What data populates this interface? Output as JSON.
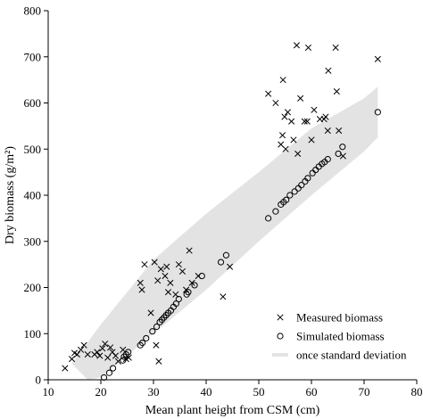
{
  "chart_data": {
    "type": "scatter",
    "xlabel": "Mean plant height from CSM (cm)",
    "ylabel": "Dry biomass (g/m²)",
    "xlim": [
      10,
      80
    ],
    "ylim": [
      0,
      800
    ],
    "x_ticks": [
      10,
      20,
      30,
      40,
      50,
      60,
      70,
      80
    ],
    "y_ticks": [
      0,
      100,
      200,
      300,
      400,
      500,
      600,
      700,
      800
    ],
    "grid": false,
    "legend_position": "bottom-right",
    "band": {
      "name": "once standard deviation",
      "color": "#e3e3e3",
      "upper": [
        [
          14.5,
          35
        ],
        [
          20,
          120
        ],
        [
          30,
          260
        ],
        [
          40,
          360
        ],
        [
          50,
          450
        ],
        [
          60,
          545
        ],
        [
          70,
          610
        ],
        [
          72.6,
          635
        ]
      ],
      "lower": [
        [
          17.5,
          0
        ],
        [
          20,
          5
        ],
        [
          30,
          100
        ],
        [
          40,
          195
        ],
        [
          50,
          300
        ],
        [
          60,
          400
        ],
        [
          70,
          495
        ],
        [
          72.6,
          525
        ]
      ]
    },
    "series": [
      {
        "name": "Measured biomass",
        "marker": "cross",
        "points": [
          [
            13.2,
            25
          ],
          [
            14.5,
            45
          ],
          [
            15,
            58
          ],
          [
            15.5,
            55
          ],
          [
            16.2,
            65
          ],
          [
            16.8,
            75
          ],
          [
            17.5,
            55
          ],
          [
            18.8,
            55
          ],
          [
            19.3,
            60
          ],
          [
            19.8,
            52
          ],
          [
            20.3,
            68
          ],
          [
            20.8,
            78
          ],
          [
            21.3,
            48
          ],
          [
            21.8,
            70
          ],
          [
            22.2,
            60
          ],
          [
            22.8,
            52
          ],
          [
            23.3,
            40
          ],
          [
            24.2,
            65
          ],
          [
            24.8,
            45
          ],
          [
            25.3,
            48
          ],
          [
            27.5,
            210
          ],
          [
            27.8,
            195
          ],
          [
            28.3,
            250
          ],
          [
            29.5,
            145
          ],
          [
            30.2,
            255
          ],
          [
            30.5,
            75
          ],
          [
            30.8,
            215
          ],
          [
            31,
            40
          ],
          [
            31.4,
            240
          ],
          [
            32.2,
            225
          ],
          [
            32.5,
            245
          ],
          [
            32.8,
            190
          ],
          [
            33.2,
            210
          ],
          [
            34.2,
            185
          ],
          [
            34.8,
            250
          ],
          [
            35.5,
            235
          ],
          [
            36.2,
            195
          ],
          [
            36.8,
            280
          ],
          [
            37.3,
            210
          ],
          [
            38.5,
            225
          ],
          [
            43.2,
            180
          ],
          [
            44.5,
            245
          ],
          [
            51.8,
            620
          ],
          [
            53.2,
            600
          ],
          [
            54.2,
            510
          ],
          [
            54.5,
            530
          ],
          [
            54.6,
            650
          ],
          [
            54.9,
            570
          ],
          [
            55.1,
            500
          ],
          [
            55.5,
            580
          ],
          [
            56.2,
            560
          ],
          [
            56.6,
            520
          ],
          [
            57.2,
            725
          ],
          [
            57.4,
            490
          ],
          [
            57.9,
            610
          ],
          [
            58.7,
            560
          ],
          [
            59.2,
            560
          ],
          [
            59.4,
            720
          ],
          [
            60,
            520
          ],
          [
            60.5,
            585
          ],
          [
            61.6,
            565
          ],
          [
            62.4,
            565
          ],
          [
            62.7,
            570
          ],
          [
            63.1,
            540
          ],
          [
            63.2,
            670
          ],
          [
            64.6,
            720
          ],
          [
            64.8,
            625
          ],
          [
            65.2,
            540
          ],
          [
            66,
            485
          ],
          [
            72.6,
            695
          ]
        ]
      },
      {
        "name": "Simulated biomass",
        "marker": "circle",
        "points": [
          [
            20.6,
            5
          ],
          [
            21.6,
            15
          ],
          [
            22.3,
            25
          ],
          [
            24.2,
            42
          ],
          [
            24.4,
            50
          ],
          [
            24.8,
            55
          ],
          [
            25.2,
            60
          ],
          [
            27.5,
            75
          ],
          [
            27.9,
            80
          ],
          [
            28.6,
            90
          ],
          [
            29.8,
            105
          ],
          [
            30.6,
            115
          ],
          [
            31.2,
            125
          ],
          [
            31.6,
            130
          ],
          [
            32,
            135
          ],
          [
            32.4,
            140
          ],
          [
            32.8,
            145
          ],
          [
            33.3,
            150
          ],
          [
            33.8,
            158
          ],
          [
            34.3,
            165
          ],
          [
            34.8,
            175
          ],
          [
            36.3,
            185
          ],
          [
            36.6,
            190
          ],
          [
            37.8,
            205
          ],
          [
            39.2,
            225
          ],
          [
            42.8,
            255
          ],
          [
            43.8,
            270
          ],
          [
            51.8,
            350
          ],
          [
            53.2,
            365
          ],
          [
            54.2,
            380
          ],
          [
            54.7,
            385
          ],
          [
            55.2,
            390
          ],
          [
            55.9,
            400
          ],
          [
            56.8,
            408
          ],
          [
            57.5,
            415
          ],
          [
            58.1,
            422
          ],
          [
            58.8,
            430
          ],
          [
            59.3,
            437
          ],
          [
            60.2,
            448
          ],
          [
            60.8,
            455
          ],
          [
            61.4,
            462
          ],
          [
            62,
            468
          ],
          [
            62.5,
            472
          ],
          [
            63.1,
            478
          ],
          [
            65.1,
            490
          ],
          [
            65.9,
            505
          ],
          [
            72.6,
            580
          ]
        ]
      }
    ],
    "legend": [
      {
        "marker": "cross",
        "label": "Measured biomass"
      },
      {
        "marker": "circle",
        "label": "Simulated biomass"
      },
      {
        "marker": "band",
        "label": "once standard deviation"
      }
    ]
  }
}
